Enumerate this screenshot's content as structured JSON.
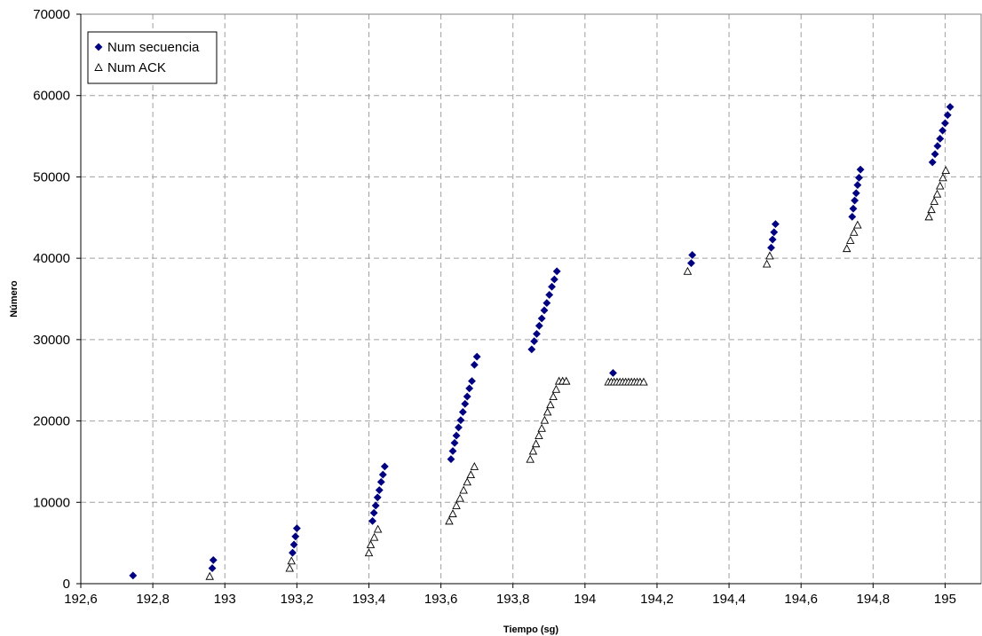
{
  "chart_data": {
    "type": "scatter",
    "title": "",
    "xlabel": "Tiempo (sg)",
    "ylabel": "Número",
    "xlim": [
      192.6,
      195.1
    ],
    "ylim": [
      0,
      70000
    ],
    "x_ticks": [
      {
        "value": 192.6,
        "label": "192,6"
      },
      {
        "value": 192.8,
        "label": "192,8"
      },
      {
        "value": 193.0,
        "label": "193"
      },
      {
        "value": 193.2,
        "label": "193,2"
      },
      {
        "value": 193.4,
        "label": "193,4"
      },
      {
        "value": 193.6,
        "label": "193,6"
      },
      {
        "value": 193.8,
        "label": "193,8"
      },
      {
        "value": 194.0,
        "label": "194"
      },
      {
        "value": 194.2,
        "label": "194,2"
      },
      {
        "value": 194.4,
        "label": "194,4"
      },
      {
        "value": 194.6,
        "label": "194,6"
      },
      {
        "value": 194.8,
        "label": "194,8"
      },
      {
        "value": 195.0,
        "label": "195"
      }
    ],
    "y_ticks": [
      {
        "value": 0,
        "label": "0"
      },
      {
        "value": 10000,
        "label": "10000"
      },
      {
        "value": 20000,
        "label": "20000"
      },
      {
        "value": 30000,
        "label": "30000"
      },
      {
        "value": 40000,
        "label": "40000"
      },
      {
        "value": 50000,
        "label": "50000"
      },
      {
        "value": 60000,
        "label": "60000"
      },
      {
        "value": 70000,
        "label": "70000"
      }
    ],
    "grid": true,
    "legend_position": "top-left",
    "series": [
      {
        "name": "Num secuencia",
        "marker": "diamond",
        "color": "#000080",
        "points": [
          [
            192.745,
            1000
          ],
          [
            192.965,
            1900
          ],
          [
            192.968,
            2900
          ],
          [
            193.188,
            3800
          ],
          [
            193.192,
            4800
          ],
          [
            193.196,
            5800
          ],
          [
            193.2,
            6800
          ],
          [
            193.41,
            7700
          ],
          [
            193.414,
            8700
          ],
          [
            193.419,
            9600
          ],
          [
            193.424,
            10600
          ],
          [
            193.429,
            11500
          ],
          [
            193.434,
            12500
          ],
          [
            193.439,
            13400
          ],
          [
            193.444,
            14400
          ],
          [
            193.628,
            15300
          ],
          [
            193.633,
            16300
          ],
          [
            193.638,
            17300
          ],
          [
            193.643,
            18200
          ],
          [
            193.649,
            19200
          ],
          [
            193.655,
            20100
          ],
          [
            193.661,
            21100
          ],
          [
            193.667,
            22100
          ],
          [
            193.673,
            23000
          ],
          [
            193.679,
            24000
          ],
          [
            193.686,
            24900
          ],
          [
            193.693,
            26900
          ],
          [
            193.7,
            27900
          ],
          [
            193.852,
            28800
          ],
          [
            193.859,
            29800
          ],
          [
            193.866,
            30700
          ],
          [
            193.873,
            31700
          ],
          [
            193.88,
            32600
          ],
          [
            193.887,
            33600
          ],
          [
            193.894,
            34500
          ],
          [
            193.901,
            35500
          ],
          [
            193.908,
            36500
          ],
          [
            193.915,
            37400
          ],
          [
            193.922,
            38400
          ],
          [
            194.078,
            25900
          ],
          [
            194.295,
            39400
          ],
          [
            194.298,
            40400
          ],
          [
            194.517,
            41300
          ],
          [
            194.521,
            42300
          ],
          [
            194.525,
            43200
          ],
          [
            194.529,
            44200
          ],
          [
            194.742,
            45100
          ],
          [
            194.745,
            46100
          ],
          [
            194.749,
            47100
          ],
          [
            194.753,
            48000
          ],
          [
            194.757,
            49000
          ],
          [
            194.761,
            49900
          ],
          [
            194.765,
            50900
          ],
          [
            194.965,
            51800
          ],
          [
            194.972,
            52800
          ],
          [
            194.979,
            53800
          ],
          [
            194.986,
            54700
          ],
          [
            194.993,
            55700
          ],
          [
            195.0,
            56600
          ],
          [
            195.007,
            57600
          ],
          [
            195.014,
            58600
          ]
        ]
      },
      {
        "name": "Num ACK",
        "marker": "triangle",
        "color": "#000000",
        "points": [
          [
            192.958,
            900
          ],
          [
            193.18,
            1900
          ],
          [
            193.185,
            2800
          ],
          [
            193.4,
            3800
          ],
          [
            193.405,
            4800
          ],
          [
            193.415,
            5700
          ],
          [
            193.425,
            6700
          ],
          [
            193.623,
            7700
          ],
          [
            193.633,
            8600
          ],
          [
            193.643,
            9600
          ],
          [
            193.653,
            10500
          ],
          [
            193.663,
            11500
          ],
          [
            193.673,
            12500
          ],
          [
            193.683,
            13400
          ],
          [
            193.693,
            14400
          ],
          [
            193.848,
            15300
          ],
          [
            193.856,
            16300
          ],
          [
            193.864,
            17200
          ],
          [
            193.872,
            18200
          ],
          [
            193.88,
            19100
          ],
          [
            193.888,
            20100
          ],
          [
            193.896,
            21100
          ],
          [
            193.904,
            22000
          ],
          [
            193.912,
            23000
          ],
          [
            193.92,
            23900
          ],
          [
            193.928,
            24900
          ],
          [
            193.938,
            24900
          ],
          [
            193.948,
            24900
          ],
          [
            194.065,
            24800
          ],
          [
            194.073,
            24800
          ],
          [
            194.081,
            24800
          ],
          [
            194.089,
            24800
          ],
          [
            194.097,
            24800
          ],
          [
            194.105,
            24800
          ],
          [
            194.113,
            24800
          ],
          [
            194.121,
            24800
          ],
          [
            194.129,
            24800
          ],
          [
            194.137,
            24800
          ],
          [
            194.145,
            24800
          ],
          [
            194.153,
            24800
          ],
          [
            194.163,
            24800
          ],
          [
            194.285,
            38400
          ],
          [
            194.505,
            39300
          ],
          [
            194.513,
            40300
          ],
          [
            194.727,
            41200
          ],
          [
            194.737,
            42200
          ],
          [
            194.747,
            43200
          ],
          [
            194.757,
            44100
          ],
          [
            194.955,
            45100
          ],
          [
            194.962,
            46000
          ],
          [
            194.97,
            47000
          ],
          [
            194.978,
            47900
          ],
          [
            194.986,
            48900
          ],
          [
            194.994,
            49900
          ],
          [
            195.002,
            50800
          ]
        ]
      }
    ]
  }
}
